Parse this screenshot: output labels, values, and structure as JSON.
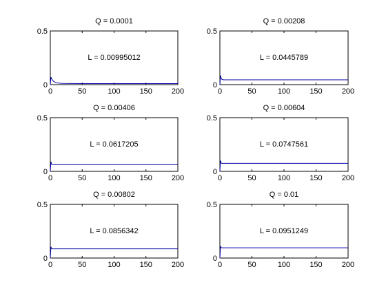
{
  "chart_data": [
    {
      "type": "line",
      "title": "Q = 0.0001",
      "annotation": "L = 0.00995012",
      "xlim": [
        0,
        200
      ],
      "ylim": [
        0,
        0.5
      ],
      "xticks": [
        "0",
        "50",
        "100",
        "150",
        "200"
      ],
      "yticks": [
        "0",
        "0.5"
      ],
      "grid": false,
      "series": [
        {
          "color": "#0000aa",
          "x": [
            0,
            1,
            2,
            3,
            4,
            6,
            8,
            10,
            12,
            15,
            20,
            30,
            50,
            100,
            200
          ],
          "y": [
            0.0,
            0.07,
            0.055,
            0.045,
            0.037,
            0.027,
            0.021,
            0.017,
            0.015,
            0.013,
            0.011,
            0.0105,
            0.01,
            0.01,
            0.01
          ]
        }
      ]
    },
    {
      "type": "line",
      "title": "Q = 0.00208",
      "annotation": "L = 0.0445789",
      "xlim": [
        0,
        200
      ],
      "ylim": [
        0,
        0.5
      ],
      "xticks": [
        "0",
        "50",
        "100",
        "150",
        "200"
      ],
      "yticks": [
        "0",
        "0.5"
      ],
      "grid": false,
      "series": [
        {
          "color": "#0000aa",
          "x": [
            0,
            1,
            2,
            3,
            4,
            6,
            8,
            200
          ],
          "y": [
            0.0,
            0.085,
            0.06,
            0.05,
            0.047,
            0.045,
            0.0446,
            0.0446
          ]
        }
      ]
    },
    {
      "type": "line",
      "title": "Q = 0.00406",
      "annotation": "L = 0.0617205",
      "xlim": [
        0,
        200
      ],
      "ylim": [
        0,
        0.5
      ],
      "xticks": [
        "0",
        "50",
        "100",
        "150",
        "200"
      ],
      "yticks": [
        "0",
        "0.5"
      ],
      "grid": false,
      "series": [
        {
          "color": "#0000aa",
          "x": [
            0,
            1,
            2,
            3,
            4,
            200
          ],
          "y": [
            0.0,
            0.09,
            0.066,
            0.063,
            0.0617,
            0.0617
          ]
        }
      ]
    },
    {
      "type": "line",
      "title": "Q = 0.00604",
      "annotation": "L = 0.0747561",
      "xlim": [
        0,
        200
      ],
      "ylim": [
        0,
        0.5
      ],
      "xticks": [
        "0",
        "50",
        "100",
        "150",
        "200"
      ],
      "yticks": [
        "0",
        "0.5"
      ],
      "grid": false,
      "series": [
        {
          "color": "#0000aa",
          "x": [
            0,
            1,
            2,
            3,
            200
          ],
          "y": [
            0.0,
            0.1,
            0.078,
            0.0748,
            0.0748
          ]
        }
      ]
    },
    {
      "type": "line",
      "title": "Q = 0.00802",
      "annotation": "L = 0.0856342",
      "xlim": [
        0,
        200
      ],
      "ylim": [
        0,
        0.5
      ],
      "xticks": [
        "0",
        "50",
        "100",
        "150",
        "200"
      ],
      "yticks": [
        "0",
        "0.5"
      ],
      "grid": false,
      "series": [
        {
          "color": "#0000aa",
          "x": [
            0,
            1,
            2,
            3,
            200
          ],
          "y": [
            0.0,
            0.105,
            0.088,
            0.0856,
            0.0856
          ]
        }
      ]
    },
    {
      "type": "line",
      "title": "Q = 0.01",
      "annotation": "L = 0.0951249",
      "xlim": [
        0,
        200
      ],
      "ylim": [
        0,
        0.5
      ],
      "xticks": [
        "0",
        "50",
        "100",
        "150",
        "200"
      ],
      "yticks": [
        "0",
        "0.5"
      ],
      "grid": false,
      "series": [
        {
          "color": "#0000aa",
          "x": [
            0,
            1,
            2,
            3,
            200
          ],
          "y": [
            0.0,
            0.11,
            0.097,
            0.0951,
            0.0951
          ]
        }
      ]
    }
  ]
}
